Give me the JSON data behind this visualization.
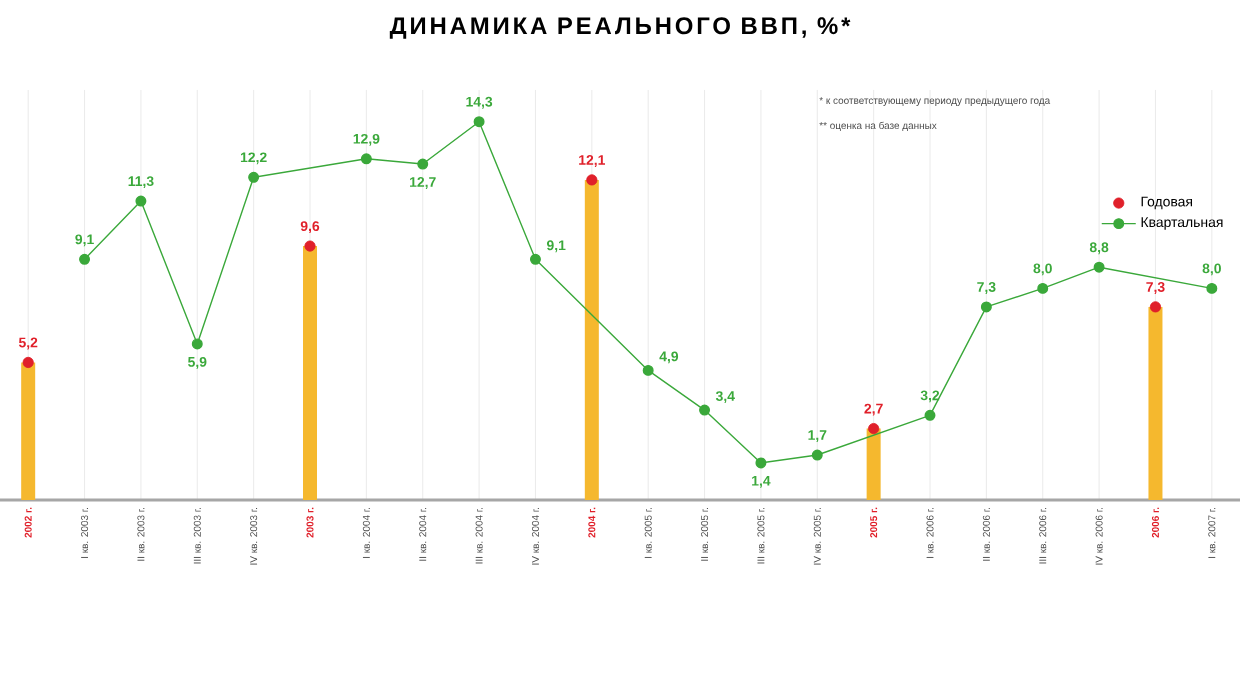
{
  "chart_data": {
    "type": "line",
    "title": "ДИНАМИКА РЕАЛЬНОГО ВВП, %*",
    "categories": [
      "2002 г.",
      "I кв. 2003 г.",
      "II кв. 2003 г.",
      "III кв. 2003 г.",
      "IV кв. 2003 г.",
      "2003 г.",
      "I кв. 2004 г.",
      "II кв. 2004 г.",
      "III кв. 2004 г.",
      "IV кв. 2004 г.",
      "2004 г.",
      "I кв. 2005 г.",
      "II кв. 2005 г.",
      "III кв. 2005 г.",
      "IV кв. 2005 г.",
      "2005 г.",
      "I кв. 2006 г.",
      "II кв. 2006 г.",
      "III кв. 2006 г.",
      "IV кв. 2006 г.",
      "2006 г.",
      "I кв. 2007 г."
    ],
    "series": [
      {
        "type": "bar",
        "color": "#f5b82e",
        "values": [
          5.2,
          null,
          null,
          null,
          null,
          9.6,
          null,
          null,
          null,
          null,
          12.1,
          null,
          null,
          null,
          null,
          2.7,
          null,
          null,
          null,
          null,
          7.3,
          null
        ]
      },
      {
        "type": "scatter",
        "name": "Годовая",
        "color": "#e0202a",
        "values": [
          5.2,
          null,
          null,
          null,
          null,
          9.6,
          null,
          null,
          null,
          null,
          12.1,
          null,
          null,
          null,
          null,
          2.7,
          null,
          null,
          null,
          null,
          7.3,
          null
        ],
        "value_labels": [
          "5,2",
          null,
          null,
          null,
          null,
          "9,6",
          null,
          null,
          null,
          null,
          "12,1",
          null,
          null,
          null,
          null,
          "2,7",
          null,
          null,
          null,
          null,
          "7,3",
          null
        ]
      },
      {
        "name": "Квартальная",
        "color": "#3aa83a",
        "values": [
          null,
          9.1,
          11.3,
          5.9,
          12.2,
          null,
          12.9,
          12.7,
          14.3,
          9.1,
          null,
          4.9,
          3.4,
          1.4,
          1.7,
          null,
          3.2,
          7.3,
          8.0,
          8.8,
          null,
          8.0
        ],
        "value_labels": [
          null,
          "9,1",
          "11,3",
          "5,9",
          "12,2",
          null,
          "12,9",
          "12,7",
          "14,3",
          "9,1",
          null,
          "4,9",
          "3,4",
          "1,4",
          "1,7",
          null,
          "3,2",
          "7,3",
          "8,0",
          "8,8",
          null,
          "8,0"
        ]
      }
    ],
    "ylim": [
      0,
      15.5
    ],
    "grid": "x",
    "legend": "top right",
    "marker": "circle",
    "annotations": [
      "* к соответствующему периоду предыдущего года",
      "** оценка на базе данных"
    ]
  }
}
